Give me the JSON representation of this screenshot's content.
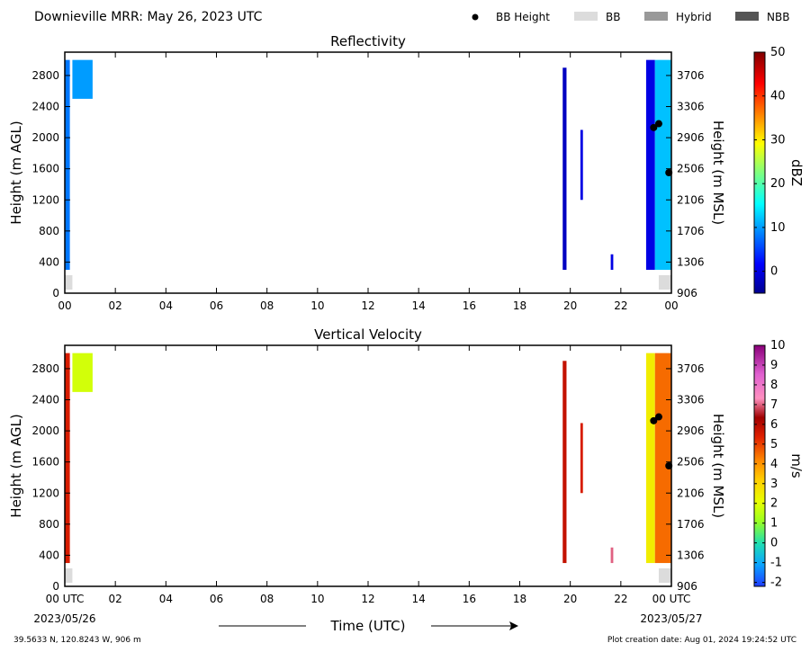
{
  "header": {
    "title": "Downieville MRR:  May 26, 2023 UTC",
    "legend": [
      {
        "label": "BB Height",
        "kind": "dot",
        "color": "#000000"
      },
      {
        "label": "BB",
        "kind": "box",
        "color": "#dcdcdc"
      },
      {
        "label": "Hybrid",
        "kind": "box",
        "color": "#999999"
      },
      {
        "label": "NBB",
        "kind": "box",
        "color": "#555555"
      }
    ]
  },
  "footer": {
    "location": "39.5633 N, 120.8243 W, 906 m",
    "creation": "Plot creation date: Aug 01, 2024 19:24:52 UTC",
    "xlabel": "Time (UTC)",
    "start_date": "2023/05/26",
    "end_date": "2023/05/27"
  },
  "colors": {
    "bb_flag": "#dcdcdc",
    "bb_dot": "#000000"
  },
  "chart_data": [
    {
      "type": "heatmap",
      "title": "Reflectivity",
      "xlabel": "",
      "ylabel": "Height (m AGL)",
      "ylabel_right": "Height (m MSL)",
      "colorbar_label": "dBZ",
      "xlim": [
        0,
        24
      ],
      "ylim": [
        0,
        3100
      ],
      "x_ticks": [
        "00",
        "02",
        "04",
        "06",
        "08",
        "10",
        "12",
        "14",
        "16",
        "18",
        "20",
        "22",
        "00"
      ],
      "y_ticks": [
        0,
        400,
        800,
        1200,
        1600,
        2000,
        2400,
        2800
      ],
      "y_ticks_right": [
        906,
        1306,
        1706,
        2106,
        2506,
        2906,
        3306,
        3706
      ],
      "colorbar": {
        "min": -5,
        "max": 50,
        "ticks": [
          0,
          10,
          20,
          30,
          40,
          50
        ],
        "colormap": "jet"
      },
      "echo_regions": [
        {
          "t0": 0.0,
          "t1": 0.2,
          "h0": 300,
          "h1": 3000,
          "value": 8
        },
        {
          "t0": 0.3,
          "t1": 1.1,
          "h0": 2500,
          "h1": 3000,
          "value": 10
        },
        {
          "t0": 19.7,
          "t1": 19.85,
          "h0": 300,
          "h1": 2900,
          "value": -2
        },
        {
          "t0": 20.4,
          "t1": 20.5,
          "h0": 1200,
          "h1": 2100,
          "value": 0
        },
        {
          "t0": 21.6,
          "t1": 21.7,
          "h0": 300,
          "h1": 500,
          "value": 0
        },
        {
          "t0": 23.0,
          "t1": 23.35,
          "h0": 300,
          "h1": 3000,
          "value": 0
        },
        {
          "t0": 23.35,
          "t1": 24.0,
          "h0": 300,
          "h1": 3000,
          "value": 12
        }
      ],
      "bb_height": [
        {
          "t": 23.3,
          "h": 2130
        },
        {
          "t": 23.5,
          "h": 2180
        },
        {
          "t": 23.9,
          "h": 1550
        }
      ],
      "bb_flag": [
        {
          "t0": 0.0,
          "t1": 0.3
        },
        {
          "t0": 23.5,
          "t1": 24.0
        }
      ]
    },
    {
      "type": "heatmap",
      "title": "Vertical Velocity",
      "xlabel": "Time (UTC)",
      "ylabel": "Height (m AGL)",
      "ylabel_right": "Height (m MSL)",
      "colorbar_label": "m/s",
      "xlim": [
        0,
        24
      ],
      "ylim": [
        0,
        3100
      ],
      "x_ticks": [
        "00 UTC",
        "02",
        "04",
        "06",
        "08",
        "10",
        "12",
        "14",
        "16",
        "18",
        "20",
        "22",
        "00 UTC"
      ],
      "y_ticks": [
        0,
        400,
        800,
        1200,
        1600,
        2000,
        2400,
        2800
      ],
      "y_ticks_right": [
        906,
        1306,
        1706,
        2106,
        2506,
        2906,
        3306,
        3706
      ],
      "colorbar": {
        "min": -2.2,
        "max": 10,
        "ticks": [
          -2,
          -1,
          0,
          1,
          2,
          3,
          4,
          5,
          6,
          7,
          8,
          9,
          10
        ],
        "colormap": "velocity"
      },
      "echo_regions": [
        {
          "t0": 0.0,
          "t1": 0.2,
          "h0": 300,
          "h1": 3000,
          "value": 5.5
        },
        {
          "t0": 0.3,
          "t1": 1.1,
          "h0": 2500,
          "h1": 3000,
          "value": 1.8
        },
        {
          "t0": 19.7,
          "t1": 19.85,
          "h0": 300,
          "h1": 2900,
          "value": 5.8
        },
        {
          "t0": 20.4,
          "t1": 20.5,
          "h0": 1200,
          "h1": 2100,
          "value": 5.5
        },
        {
          "t0": 21.6,
          "t1": 21.7,
          "h0": 300,
          "h1": 500,
          "value": 7
        },
        {
          "t0": 23.0,
          "t1": 23.35,
          "h0": 300,
          "h1": 3000,
          "value": 2.5
        },
        {
          "t0": 23.35,
          "t1": 24.0,
          "h0": 300,
          "h1": 3000,
          "value": 4.5
        }
      ],
      "bb_height": [
        {
          "t": 23.3,
          "h": 2130
        },
        {
          "t": 23.5,
          "h": 2180
        },
        {
          "t": 23.9,
          "h": 1550
        }
      ],
      "bb_flag": [
        {
          "t0": 0.0,
          "t1": 0.3
        },
        {
          "t0": 23.5,
          "t1": 24.0
        }
      ]
    }
  ]
}
